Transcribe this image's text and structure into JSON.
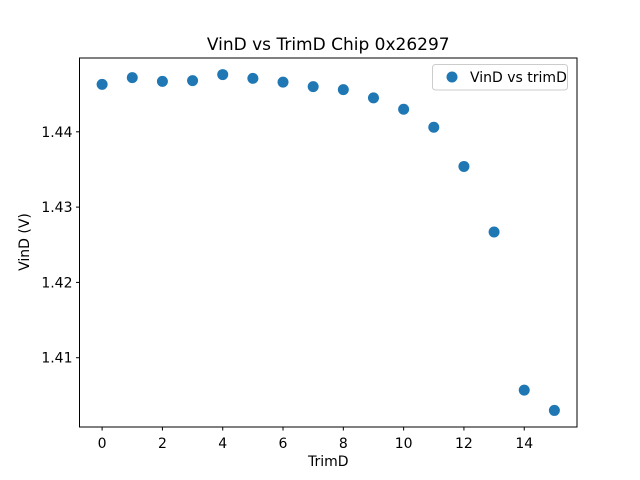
{
  "chart_data": {
    "type": "scatter",
    "title": "VinD vs TrimD Chip 0x26297",
    "xlabel": "TrimD",
    "ylabel": "VinD (V)",
    "legend": {
      "label": "VinD vs trimD",
      "position": "upper right",
      "marker_icon": "filled-circle"
    },
    "x": [
      0,
      1,
      2,
      3,
      4,
      5,
      6,
      7,
      8,
      9,
      10,
      11,
      12,
      13,
      14,
      15
    ],
    "y": [
      1.4463,
      1.4472,
      1.4467,
      1.4468,
      1.4476,
      1.4471,
      1.4466,
      1.446,
      1.4456,
      1.4445,
      1.443,
      1.4406,
      1.4354,
      1.4267,
      1.4057,
      1.403
    ],
    "xticks": [
      0,
      2,
      4,
      6,
      8,
      10,
      12,
      14
    ],
    "yticks": [
      1.41,
      1.42,
      1.43,
      1.44
    ],
    "ytick_labels": [
      "1.41",
      "1.42",
      "1.43",
      "1.44"
    ],
    "xlim": [
      -0.75,
      15.75
    ],
    "ylim": [
      1.4008,
      1.4498
    ],
    "grid": false,
    "marker_color": "#1f77b4",
    "marker_radius_px": 5.5,
    "background_color": "#ffffff",
    "spine_color": "#000000",
    "legend_border_color": "#cccccc"
  }
}
